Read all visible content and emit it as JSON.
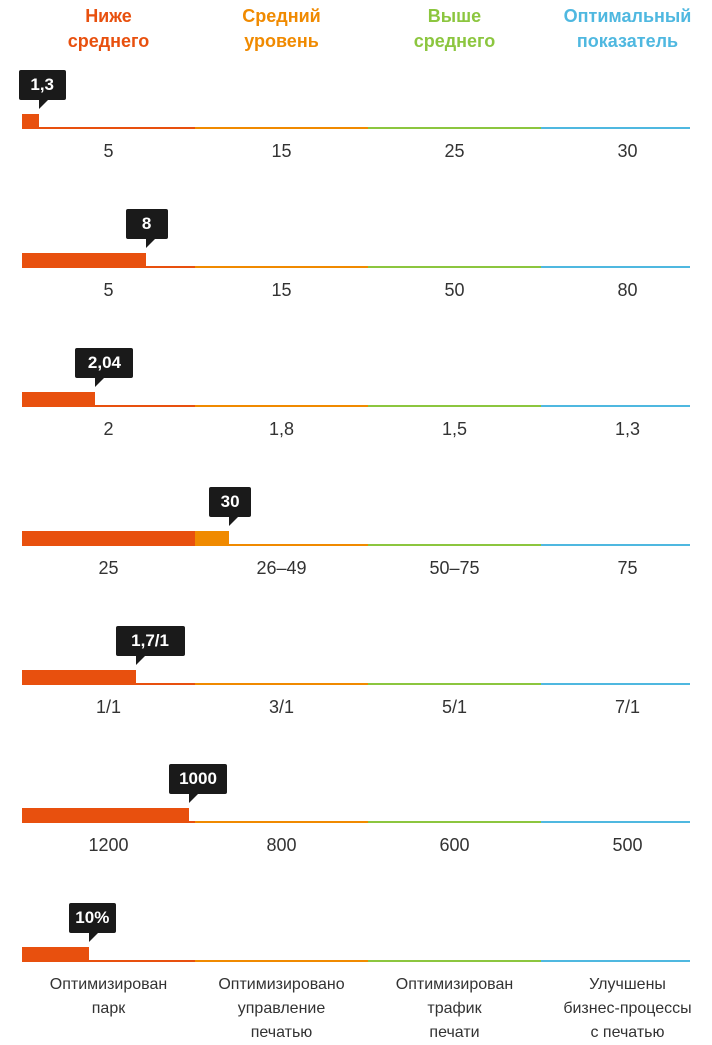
{
  "colors": {
    "below": "#e8500e",
    "average": "#f08a00",
    "above": "#8cc63f",
    "optimal": "#4fb8e0",
    "callout_bg": "#1a1a1a",
    "label_text": "#333333"
  },
  "header": [
    {
      "lines": [
        "Ниже",
        "среднего"
      ],
      "color": "#e8500e"
    },
    {
      "lines": [
        "Средний",
        "уровень"
      ],
      "color": "#f08a00"
    },
    {
      "lines": [
        "Выше",
        "среднего"
      ],
      "color": "#8cc63f"
    },
    {
      "lines": [
        "Оптимальный",
        "показатель"
      ],
      "color": "#4fb8e0"
    }
  ],
  "chart_data": {
    "type": "bar",
    "rows": [
      {
        "value_label": "1,3",
        "fill_fraction": 0.025,
        "ticks": [
          "5",
          "15",
          "25",
          "30"
        ]
      },
      {
        "value_label": "8",
        "fill_fraction": 0.185,
        "ticks": [
          "5",
          "15",
          "50",
          "80"
        ]
      },
      {
        "value_label": "2,04",
        "fill_fraction": 0.11,
        "ticks": [
          "2",
          "1,8",
          "1,5",
          "1,3"
        ]
      },
      {
        "value_label": "30",
        "fill_fraction": 0.31,
        "ticks": [
          "25",
          "26–49",
          "50–75",
          "75"
        ]
      },
      {
        "value_label": "1,7/1",
        "fill_fraction": 0.17,
        "ticks": [
          "1/1",
          "3/1",
          "5/1",
          "7/1"
        ]
      },
      {
        "value_label": "1000",
        "fill_fraction": 0.25,
        "ticks": [
          "1200",
          "800",
          "600",
          "500"
        ]
      },
      {
        "value_label": "10%",
        "fill_fraction": 0.1,
        "ticks": [
          [
            "Оптимизирован",
            "парк"
          ],
          [
            "Оптимизировано",
            "управление",
            "печатью"
          ],
          [
            "Оптимизирован",
            "трафик",
            "печати"
          ],
          [
            "Улучшены",
            "бизнес-процессы",
            "с печатью"
          ]
        ]
      }
    ]
  }
}
